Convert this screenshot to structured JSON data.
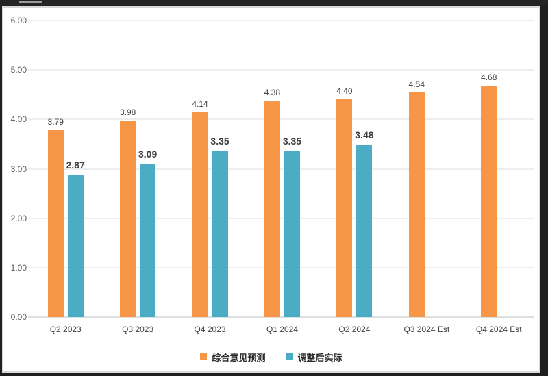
{
  "window": {
    "top_tab": ""
  },
  "chart_data": {
    "type": "bar",
    "title": "",
    "xlabel": "",
    "ylabel": "",
    "categories": [
      "Q2 2023",
      "Q3 2023",
      "Q4 2023",
      "Q1 2024",
      "Q2 2024",
      "Q3 2024 Est",
      "Q4 2024 Est"
    ],
    "series": [
      {
        "name": "综合意见预测",
        "color": "#F79646",
        "values": [
          3.79,
          3.98,
          4.14,
          4.38,
          4.4,
          4.54,
          4.68
        ],
        "labels": [
          "3.79",
          "3.98",
          "4.14",
          "4.38",
          "4.40",
          "4.54",
          "4.68"
        ]
      },
      {
        "name": "调整后实际",
        "color": "#4BACC6",
        "values": [
          2.87,
          3.09,
          3.35,
          3.35,
          3.48,
          null,
          null
        ],
        "labels": [
          "2.87",
          "3.09",
          "3.35",
          "3.35",
          "3.48",
          null,
          null
        ]
      }
    ],
    "ylim": [
      0,
      6
    ],
    "ytick_step": 1,
    "ytick_labels": [
      "0.00",
      "1.00",
      "2.00",
      "3.00",
      "4.00",
      "5.00",
      "6.00"
    ],
    "grid": true,
    "legend_position": "bottom",
    "colors": {
      "gridline": "#dedede",
      "axis_line": "#bfbfbf",
      "ytick_text": "#595959",
      "xtick_text": "#404040",
      "data_label_text": "#404040"
    }
  }
}
